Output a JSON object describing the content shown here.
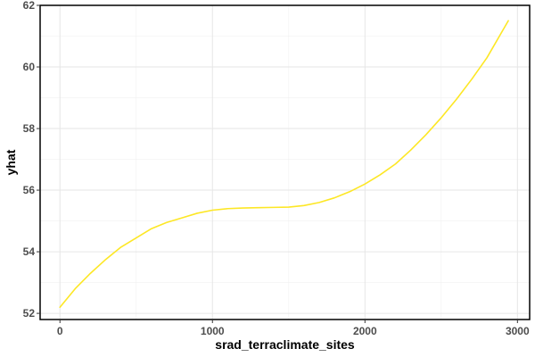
{
  "chart_data": {
    "type": "line",
    "title": "",
    "xlabel": "srad_terraclimate_sites",
    "ylabel": "yhat",
    "xlim": [
      -130,
      3080
    ],
    "ylim": [
      51.8,
      62
    ],
    "x_ticks": [
      0,
      1000,
      2000,
      3000
    ],
    "y_ticks": [
      52,
      54,
      56,
      58,
      60,
      62
    ],
    "x_tick_labels": [
      "0",
      "1000",
      "2000",
      "3000"
    ],
    "y_tick_labels": [
      "52",
      "54",
      "56",
      "58",
      "60",
      "62"
    ],
    "grid": true,
    "legend": "none",
    "line_color": "#FDE725",
    "series": [
      {
        "x": [
          0,
          100,
          200,
          300,
          400,
          500,
          600,
          700,
          800,
          900,
          1000,
          1100,
          1200,
          1300,
          1400,
          1500,
          1600,
          1700,
          1800,
          1900,
          2000,
          2100,
          2200,
          2300,
          2400,
          2500,
          2600,
          2700,
          2800,
          2940
        ],
        "y": [
          52.2,
          52.8,
          53.3,
          53.75,
          54.15,
          54.45,
          54.75,
          54.95,
          55.1,
          55.25,
          55.35,
          55.4,
          55.42,
          55.43,
          55.44,
          55.45,
          55.5,
          55.6,
          55.75,
          55.95,
          56.2,
          56.5,
          56.85,
          57.3,
          57.8,
          58.35,
          58.95,
          59.6,
          60.3,
          61.5
        ]
      }
    ]
  }
}
